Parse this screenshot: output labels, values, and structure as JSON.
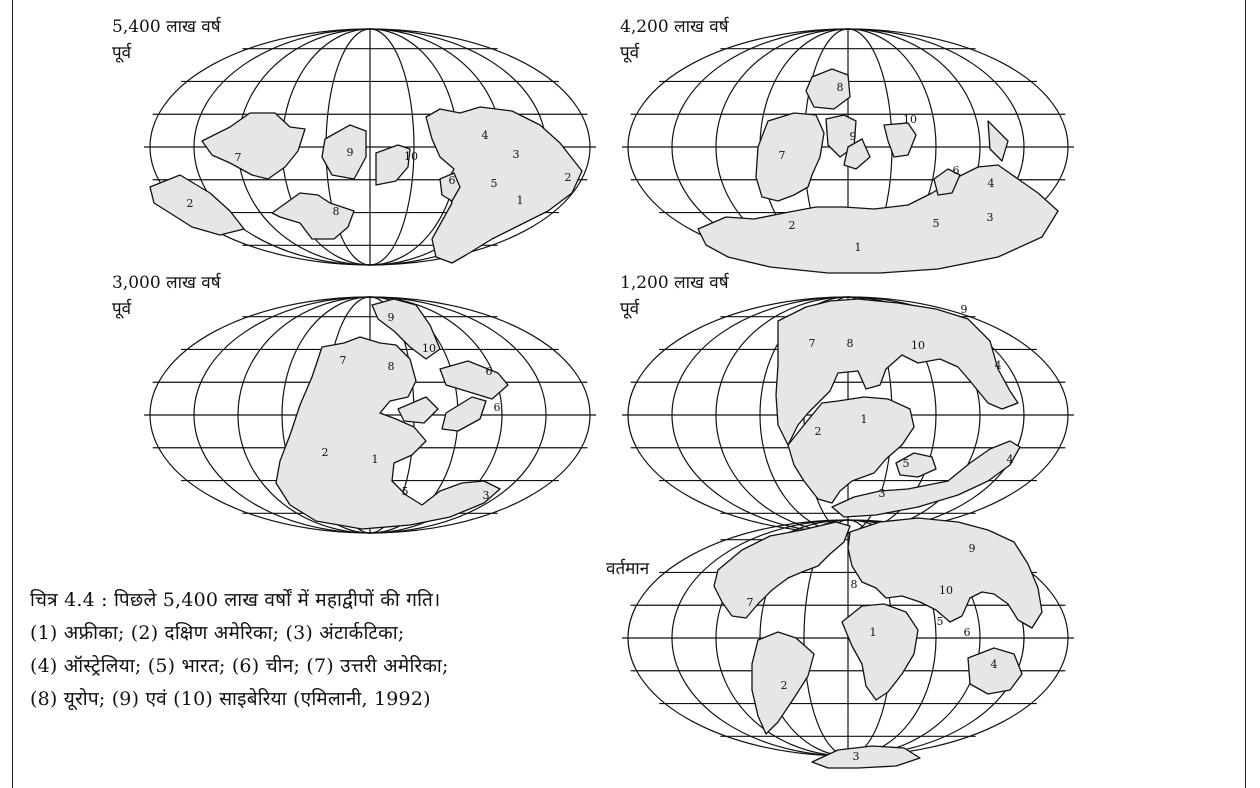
{
  "maps": [
    {
      "id": "m540",
      "line1": "5,400 लाख वर्ष",
      "line2": "पूर्व",
      "nums": [
        {
          "t": "7"
        },
        {
          "t": "9"
        },
        {
          "t": "10"
        },
        {
          "t": "6"
        },
        {
          "t": "8"
        },
        {
          "t": "4"
        },
        {
          "t": "3"
        },
        {
          "t": "5"
        },
        {
          "t": "1"
        },
        {
          "t": "2"
        },
        {
          "t": "2"
        }
      ]
    },
    {
      "id": "m420",
      "line1": "4,200 लाख वर्ष",
      "line2": "पूर्व",
      "nums": [
        {
          "t": "8"
        },
        {
          "t": "9"
        },
        {
          "t": "10"
        },
        {
          "t": "7"
        },
        {
          "t": "6"
        },
        {
          "t": "4"
        },
        {
          "t": "2"
        },
        {
          "t": "1"
        },
        {
          "t": "5"
        },
        {
          "t": "3"
        }
      ]
    },
    {
      "id": "m300",
      "line1": "3,000 लाख वर्ष",
      "line2": "पूर्व",
      "nums": [
        {
          "t": "9"
        },
        {
          "t": "10"
        },
        {
          "t": "7"
        },
        {
          "t": "8"
        },
        {
          "t": "6"
        },
        {
          "t": "6"
        },
        {
          "t": "2"
        },
        {
          "t": "1"
        },
        {
          "t": "5"
        },
        {
          "t": "3"
        }
      ]
    },
    {
      "id": "m120",
      "line1": "1,200 लाख वर्ष",
      "line2": "पूर्व",
      "nums": [
        {
          "t": "9"
        },
        {
          "t": "7"
        },
        {
          "t": "8"
        },
        {
          "t": "10"
        },
        {
          "t": "4"
        },
        {
          "t": "1"
        },
        {
          "t": "2"
        },
        {
          "t": "5"
        },
        {
          "t": "4"
        },
        {
          "t": "3"
        }
      ]
    },
    {
      "id": "m0",
      "line1": "वर्तमान",
      "line2": "",
      "nums": [
        {
          "t": "9"
        },
        {
          "t": "8"
        },
        {
          "t": "10"
        },
        {
          "t": "7"
        },
        {
          "t": "1"
        },
        {
          "t": "5"
        },
        {
          "t": "6"
        },
        {
          "t": "2"
        },
        {
          "t": "4"
        },
        {
          "t": "3"
        }
      ]
    }
  ],
  "caption": {
    "line1": "चित्र 4.4 : पिछले 5,400 लाख वर्षों में महाद्वीपों की गति।",
    "line2": "(1) अफ्रीका; (2) दक्षिण अमेरिका; (3) अंटार्कटिका;",
    "line3": "(4) ऑस्ट्रेलिया; (5) भारत; (6) चीन; (7) उत्तरी अमेरिका;",
    "line4": "(8) यूरोप; (9) एवं (10) साइबेरिया (एमिलानी, 1992)"
  }
}
